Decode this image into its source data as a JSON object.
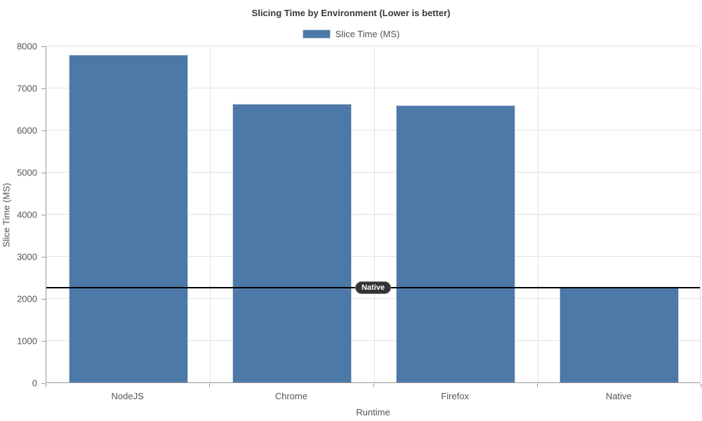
{
  "chart_data": {
    "type": "bar",
    "title": "Slicing Time by Environment (Lower is better)",
    "series_name": "Slice Time (MS)",
    "categories": [
      "NodeJS",
      "Chrome",
      "Firefox",
      "Native"
    ],
    "values": [
      7790,
      6620,
      6590,
      2250
    ],
    "xlabel": "Runtime",
    "ylabel": "Slice Time (MS)",
    "ylim": [
      0,
      8000
    ],
    "yticks": [
      0,
      1000,
      2000,
      3000,
      4000,
      5000,
      6000,
      7000,
      8000
    ],
    "grid": true,
    "legend_position": "top-center",
    "reference_line": {
      "value": 2250,
      "label": "Native"
    }
  },
  "colors": {
    "bar": "#4d79a8",
    "bar_edge": "#c9d6e4",
    "grid": "#e3e3e3",
    "axis": "#999999",
    "text": "#555555",
    "title": "#3a3a3a",
    "reference_line": "#000000",
    "pill_background": "#333333",
    "pill_text": "#ffffff",
    "background": "#ffffff"
  }
}
